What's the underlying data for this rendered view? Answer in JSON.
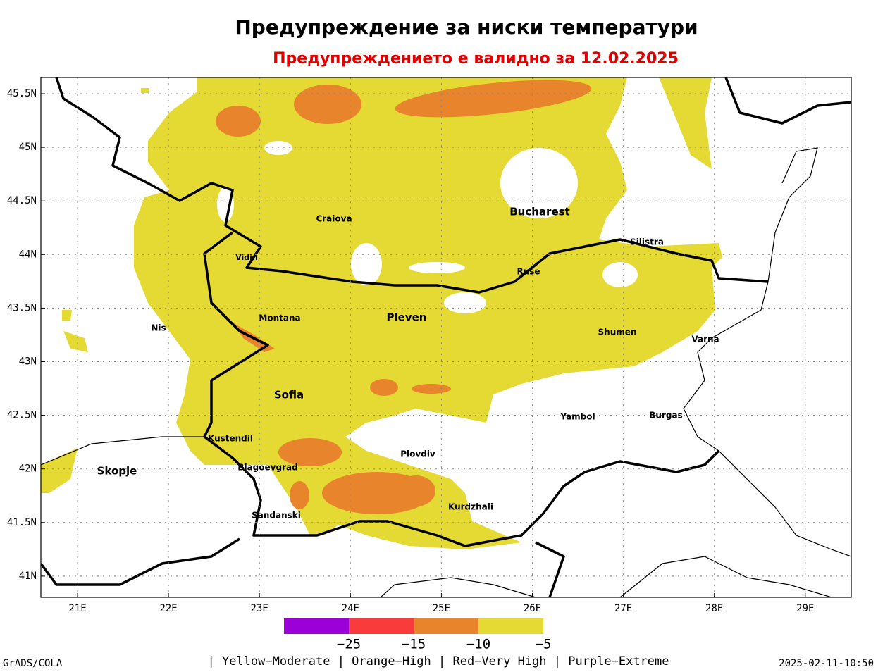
{
  "header": {
    "title": "Предупреждение за ниски температури",
    "subtitle": "Предупреждението е валидно за 12.02.2025"
  },
  "map": {
    "lat_labels": [
      "45.5N",
      "45N",
      "44.5N",
      "44N",
      "43.5N",
      "43N",
      "42.5N",
      "42N",
      "41.5N",
      "41N"
    ],
    "lon_labels": [
      "21E",
      "22E",
      "23E",
      "24E",
      "25E",
      "26E",
      "27E",
      "28E",
      "29E"
    ],
    "places": [
      "Craiova",
      "Bucharest",
      "Silistra",
      "Vidin",
      "Ruse",
      "Montana",
      "Pleven",
      "Nis",
      "Shumen",
      "Varna",
      "Sofia",
      "Yambol",
      "Burgas",
      "Kustendil",
      "Plovdiv",
      "Skopje",
      "Blagoevgrad",
      "Kurdzhali",
      "Sandanski"
    ]
  },
  "colorbar": {
    "labels": [
      "−25",
      "−15",
      "−10",
      "−5"
    ],
    "legend": "| Yellow−Moderate | Orange−High | Red−Very High | Purple−Extreme"
  },
  "footer": {
    "left": "GrADS/COLA",
    "right": "2025-02-11-10:50"
  }
}
